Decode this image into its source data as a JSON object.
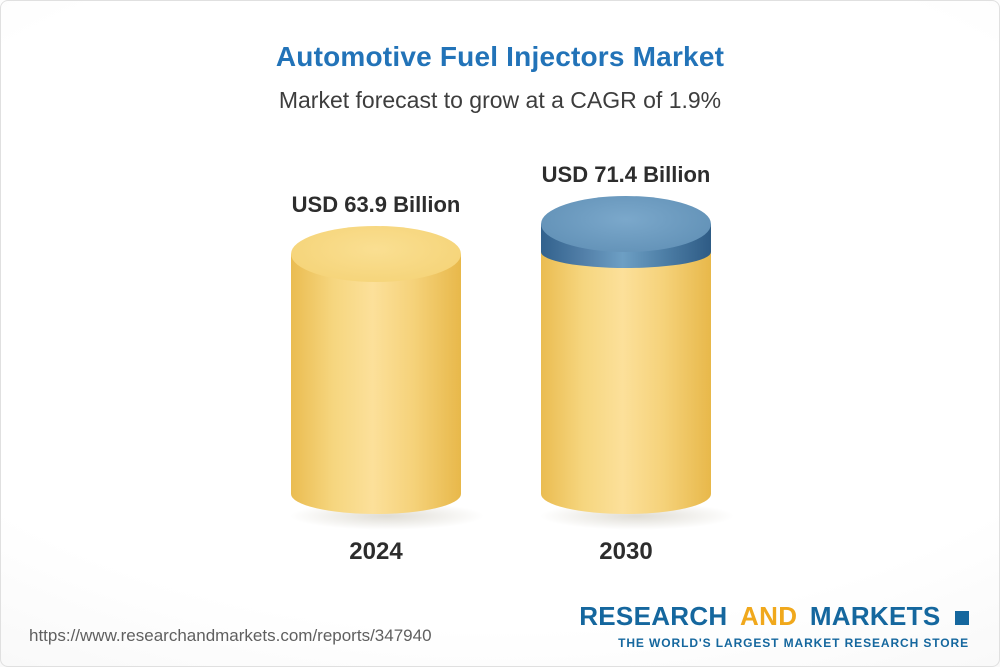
{
  "page": {
    "title": "Automotive Fuel Injectors Market",
    "subtitle": "Market forecast to grow at a CAGR of 1.9%"
  },
  "chart_data": {
    "type": "bar",
    "title": "Automotive Fuel Injectors Market",
    "subtitle": "Market forecast to grow at a CAGR of 1.9%",
    "categories": [
      "2024",
      "2030"
    ],
    "values": [
      63.9,
      71.4
    ],
    "value_labels": [
      "USD 63.9 Billion",
      "USD 71.4 Billion"
    ],
    "unit": "USD Billion",
    "cagr_percent": 1.9,
    "ylim": [
      0,
      71.4
    ],
    "grid": false,
    "legend": false,
    "colors": {
      "bar_fill": "#f5d27a",
      "growth_cap_fill": "#4a7ba3",
      "title_accent": "#2273b8"
    }
  },
  "footer": {
    "url": "https://www.researchandmarkets.com/reports/347940",
    "logo": {
      "word1": "RESEARCH",
      "word2": "AND",
      "word3": "MARKETS",
      "tagline": "THE WORLD'S LARGEST MARKET RESEARCH STORE"
    }
  }
}
